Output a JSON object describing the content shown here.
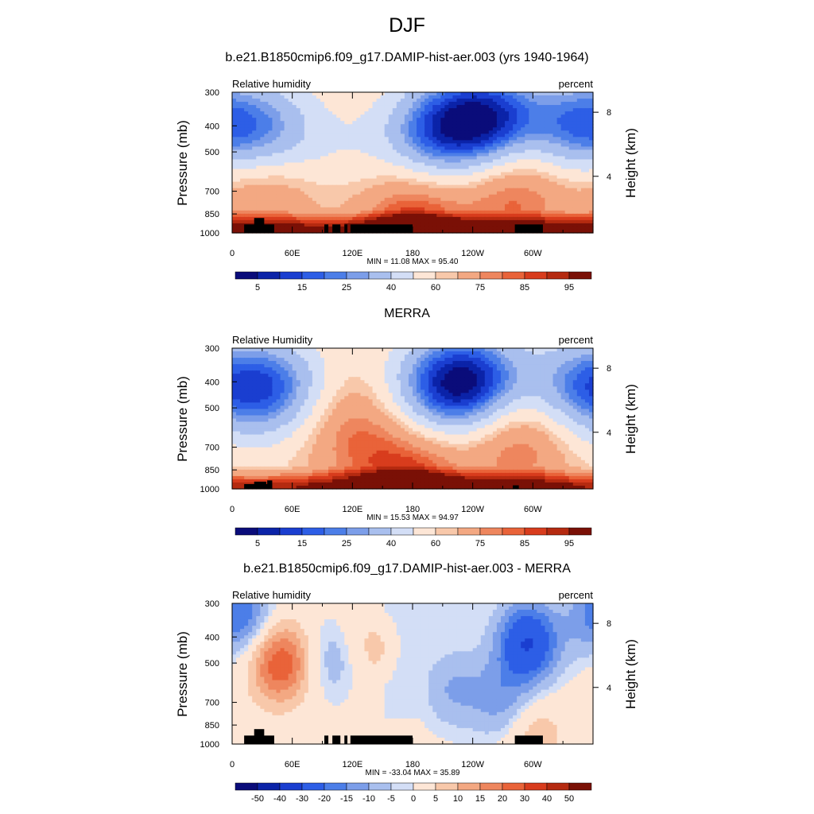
{
  "figure": {
    "title": "DJF"
  },
  "colors": {
    "abs_levels": [
      "#0a0c7a",
      "#0b23a8",
      "#1a3ed0",
      "#2d5ee6",
      "#4c7ee8",
      "#7c9ee9",
      "#a9bfee",
      "#d3def6",
      "#fde6d6",
      "#f8c8aa",
      "#f3a882",
      "#ee865e",
      "#e96339",
      "#d83c1d",
      "#b52a10",
      "#7a1006"
    ],
    "diff_levels": [
      "#0a0c7a",
      "#0b23a8",
      "#1a3ed0",
      "#2d5ee6",
      "#4c7ee8",
      "#7c9ee9",
      "#a9bfee",
      "#d3def6",
      "#fde6d6",
      "#f8c8aa",
      "#f3a882",
      "#ee865e",
      "#e96339",
      "#d83c1d",
      "#b52a10",
      "#7a1006"
    ],
    "terrain": "#000000"
  },
  "panels": [
    {
      "title": "b.e21.B1850cmip6.f09_g17.DAMIP-hist-aer.003 (yrs 1940-1964)",
      "left_label": "Relative humidity",
      "right_label": "percent",
      "ylabel": "Pressure (mb)",
      "y2label": "Height (km)",
      "min_max": "MIN =  11.08  MAX =  95.40",
      "cbar_labels": [
        "5",
        "15",
        "25",
        "40",
        "60",
        "75",
        "85",
        "95"
      ]
    },
    {
      "title": "MERRA",
      "left_label": "Relative Humidity",
      "right_label": "percent",
      "ylabel": "Pressure (mb)",
      "y2label": "Height (km)",
      "min_max": "MIN =  15.53  MAX =  94.97",
      "cbar_labels": [
        "5",
        "15",
        "25",
        "40",
        "60",
        "75",
        "85",
        "95"
      ]
    },
    {
      "title": "b.e21.B1850cmip6.f09_g17.DAMIP-hist-aer.003 - MERRA",
      "left_label": "Relative humidity",
      "right_label": "percent",
      "ylabel": "Pressure (mb)",
      "y2label": "Height (km)",
      "min_max": "MIN = -33.04  MAX =  35.89",
      "cbar_labels": [
        "-50",
        "-40",
        "-30",
        "-20",
        "-15",
        "-10",
        "-5",
        "0",
        "5",
        "10",
        "15",
        "20",
        "30",
        "40",
        "50"
      ]
    }
  ],
  "chart_data": [
    {
      "type": "heatmap",
      "title": "b.e21.B1850cmip6.f09_g17.DAMIP-hist-aer.003 (yrs 1940-1964)",
      "variable": "Relative humidity",
      "units": "percent",
      "x_ticks": [
        "0",
        "60E",
        "120E",
        "180",
        "120W",
        "60W"
      ],
      "y_ticks": [
        "300",
        "400",
        "500",
        "700",
        "850",
        "1000"
      ],
      "y2_ticks": [
        "8",
        "4"
      ],
      "xlim": [
        0,
        360
      ],
      "ylim": [
        1000,
        300
      ],
      "y_scale": "log",
      "min": 11.08,
      "max": 95.4,
      "levels": [
        5,
        10,
        15,
        20,
        25,
        30,
        40,
        50,
        60,
        65,
        75,
        80,
        85,
        90,
        95
      ],
      "features": [
        {
          "lon": 255,
          "p": 380,
          "rh": 12
        },
        {
          "lon": 200,
          "p": 420,
          "rh": 25
        },
        {
          "lon": 120,
          "p": 500,
          "rh": 55
        },
        {
          "lon": 280,
          "p": 700,
          "rh": 85
        },
        {
          "lon": 30,
          "p": 700,
          "rh": 80
        },
        {
          "lon": 180,
          "p": 920,
          "rh": 92
        },
        {
          "lon": 345,
          "p": 400,
          "rh": 25
        },
        {
          "lon": 42,
          "p": 420,
          "rh": 35
        }
      ]
    },
    {
      "type": "heatmap",
      "title": "MERRA",
      "variable": "Relative Humidity",
      "units": "percent",
      "x_ticks": [
        "0",
        "60E",
        "120E",
        "180",
        "120W",
        "60W"
      ],
      "y_ticks": [
        "300",
        "400",
        "500",
        "700",
        "850",
        "1000"
      ],
      "y2_ticks": [
        "8",
        "4"
      ],
      "xlim": [
        0,
        360
      ],
      "ylim": [
        1000,
        300
      ],
      "y_scale": "log",
      "min": 15.53,
      "max": 94.97,
      "levels": [
        5,
        10,
        15,
        20,
        25,
        30,
        40,
        50,
        60,
        65,
        75,
        80,
        85,
        90,
        95
      ],
      "features": [
        {
          "lon": 245,
          "p": 400,
          "rh": 18
        },
        {
          "lon": 200,
          "p": 420,
          "rh": 30
        },
        {
          "lon": 45,
          "p": 420,
          "rh": 25
        },
        {
          "lon": 345,
          "p": 420,
          "rh": 28
        },
        {
          "lon": 120,
          "p": 600,
          "rh": 80
        },
        {
          "lon": 285,
          "p": 650,
          "rh": 85
        },
        {
          "lon": 180,
          "p": 920,
          "rh": 90
        }
      ]
    },
    {
      "type": "heatmap",
      "title": "b.e21.B1850cmip6.f09_g17.DAMIP-hist-aer.003 - MERRA",
      "variable": "Relative humidity",
      "units": "percent",
      "x_ticks": [
        "0",
        "60E",
        "120E",
        "180",
        "120W",
        "60W"
      ],
      "y_ticks": [
        "300",
        "400",
        "500",
        "700",
        "850",
        "1000"
      ],
      "y2_ticks": [
        "8",
        "4"
      ],
      "xlim": [
        0,
        360
      ],
      "ylim": [
        1000,
        300
      ],
      "y_scale": "log",
      "min": -33.04,
      "max": 35.89,
      "levels": [
        -50,
        -40,
        -30,
        -20,
        -15,
        -10,
        -5,
        0,
        5,
        10,
        15,
        20,
        30,
        40,
        50
      ],
      "features": [
        {
          "lon": 295,
          "p": 420,
          "rh": -30
        },
        {
          "lon": 8,
          "p": 330,
          "rh": -20
        },
        {
          "lon": 48,
          "p": 500,
          "rh": 25
        },
        {
          "lon": 105,
          "p": 480,
          "rh": -12
        },
        {
          "lon": 130,
          "p": 450,
          "rh": 10
        },
        {
          "lon": 220,
          "p": 620,
          "rh": -10
        },
        {
          "lon": 270,
          "p": 700,
          "rh": -12
        },
        {
          "lon": 300,
          "p": 920,
          "rh": 10
        }
      ]
    }
  ]
}
